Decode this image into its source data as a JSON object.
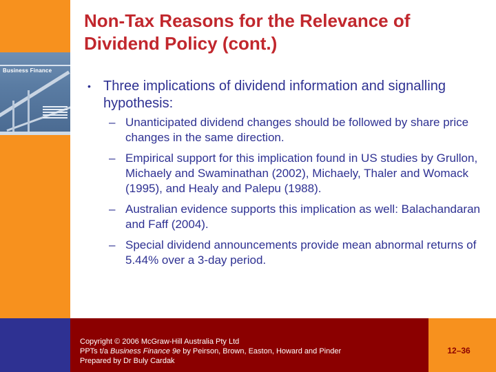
{
  "slide": {
    "title_line1": "Non-Tax Reasons for the Relevance of",
    "title_line2": "Dividend Policy (cont.)",
    "bullet": {
      "text": "Three implications of dividend information and signalling hypothesis:",
      "sub_items": [
        "Unanticipated dividend changes should be followed by share price changes in the same direction.",
        "Empirical support for this implication found in US studies by Grullon, Michaely and Swaminathan (2002), Michaely, Thaler and Womack (1995), and Healy and Palepu (1988).",
        "Australian evidence supports this implication as well: Balachandaran and Faff (2004).",
        "Special dividend announcements provide mean abnormal returns of 5.44% over a 3-day period."
      ]
    }
  },
  "book_cover": {
    "title": "Business Finance"
  },
  "footer": {
    "copyright": "Copyright © 2006 McGraw-Hill Australia Pty Ltd",
    "ppts_prefix": "PPTs t/a ",
    "book_title": "Business Finance 9e",
    "ppts_suffix": " by Peirson, Brown, Easton, Howard and Pinder",
    "prepared_by": "Prepared by Dr Buly Cardak",
    "page_number": "12–36"
  },
  "colors": {
    "orange": "#f7911e",
    "navy": "#2e3192",
    "dark_red": "#8b0000",
    "title_red": "#c1272d"
  }
}
